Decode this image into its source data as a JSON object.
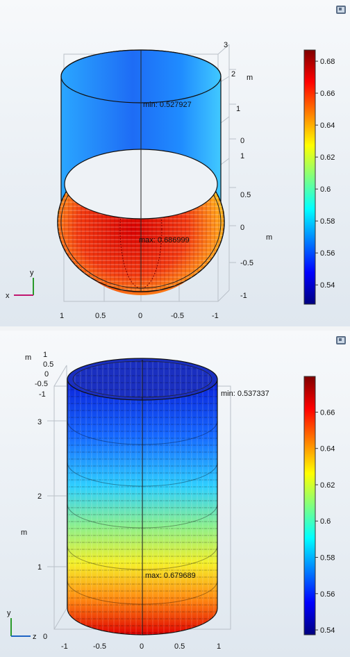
{
  "top_view": {
    "annotations": {
      "min": "min: 0.527927",
      "max": "max: 0.686999"
    },
    "axis_ticks_bottom": [
      "1",
      "0.5",
      "0",
      "-0.5",
      "-1"
    ],
    "axis_ticks_right": [
      "0.5",
      "0",
      "-0.5",
      "-1"
    ],
    "axis_ticks_upper": [
      "3",
      "2",
      "1",
      "0",
      "1"
    ],
    "unit_labels": [
      "m",
      "m"
    ],
    "triad": {
      "up": "y",
      "left": "x"
    },
    "colorbar": {
      "ticks": [
        "0.68",
        "0.66",
        "0.64",
        "0.62",
        "0.6",
        "0.58",
        "0.56",
        "0.54"
      ],
      "values": [
        0.68,
        0.66,
        0.64,
        0.62,
        0.6,
        0.58,
        0.56,
        0.54
      ],
      "range": [
        0.527927,
        0.686999
      ]
    }
  },
  "bottom_view": {
    "annotations": {
      "min": "min: 0.537337",
      "max": "max: 0.679689"
    },
    "axis_ticks_left_small": [
      "1",
      "0.5",
      "0",
      "-0.5",
      "-1"
    ],
    "axis_ticks_left": [
      "3",
      "2",
      "1",
      "0"
    ],
    "axis_ticks_bottom": [
      "-1",
      "-0.5",
      "0",
      "0.5",
      "1"
    ],
    "unit_labels": [
      "m",
      "m"
    ],
    "triad": {
      "up": "y",
      "right": "z"
    },
    "colorbar": {
      "ticks": [
        "0.66",
        "0.64",
        "0.62",
        "0.6",
        "0.58",
        "0.56",
        "0.54"
      ],
      "values": [
        0.66,
        0.64,
        0.62,
        0.6,
        0.58,
        0.56,
        0.54
      ],
      "range": [
        0.537337,
        0.679689
      ]
    }
  },
  "colors": {
    "jet": [
      "#00007f",
      "#0000ff",
      "#007fff",
      "#00ffff",
      "#7fff7f",
      "#ffff00",
      "#ff7f00",
      "#ff0000",
      "#7f0000"
    ]
  }
}
